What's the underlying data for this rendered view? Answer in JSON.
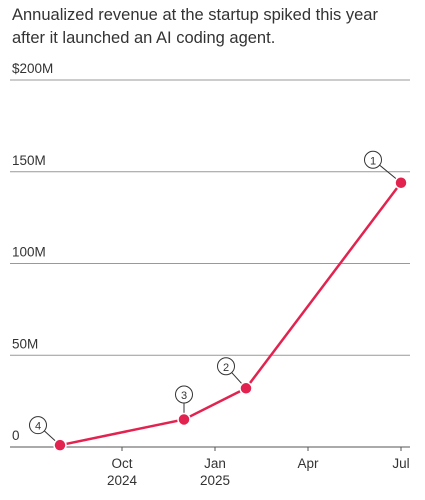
{
  "chart_data": {
    "type": "line",
    "title": "Annualized revenue at the startup spiked this year after it launched an AI coding agent.",
    "x": [
      "2024-08",
      "2024-12",
      "2025-02",
      "2025-07"
    ],
    "values": [
      1,
      15,
      32,
      144
    ],
    "point_labels": [
      "4",
      "3",
      "2",
      "1"
    ],
    "color": "#e3234f",
    "ylim": [
      0,
      200
    ],
    "yticks": [
      0,
      {
        "value": 50,
        "label": "50M"
      },
      {
        "value": 100,
        "label": "100M"
      },
      {
        "value": 150,
        "label": "150M"
      },
      {
        "value": 200,
        "label": "$200M"
      }
    ],
    "xticks": [
      {
        "value": "2024-10",
        "label": [
          "Oct",
          "2024"
        ]
      },
      {
        "value": "2025-01",
        "label": [
          "Jan",
          "2025"
        ]
      },
      {
        "value": "2025-04",
        "label": [
          "Apr"
        ]
      },
      {
        "value": "2025-07",
        "label": [
          "Jul"
        ]
      }
    ],
    "grid": true
  }
}
